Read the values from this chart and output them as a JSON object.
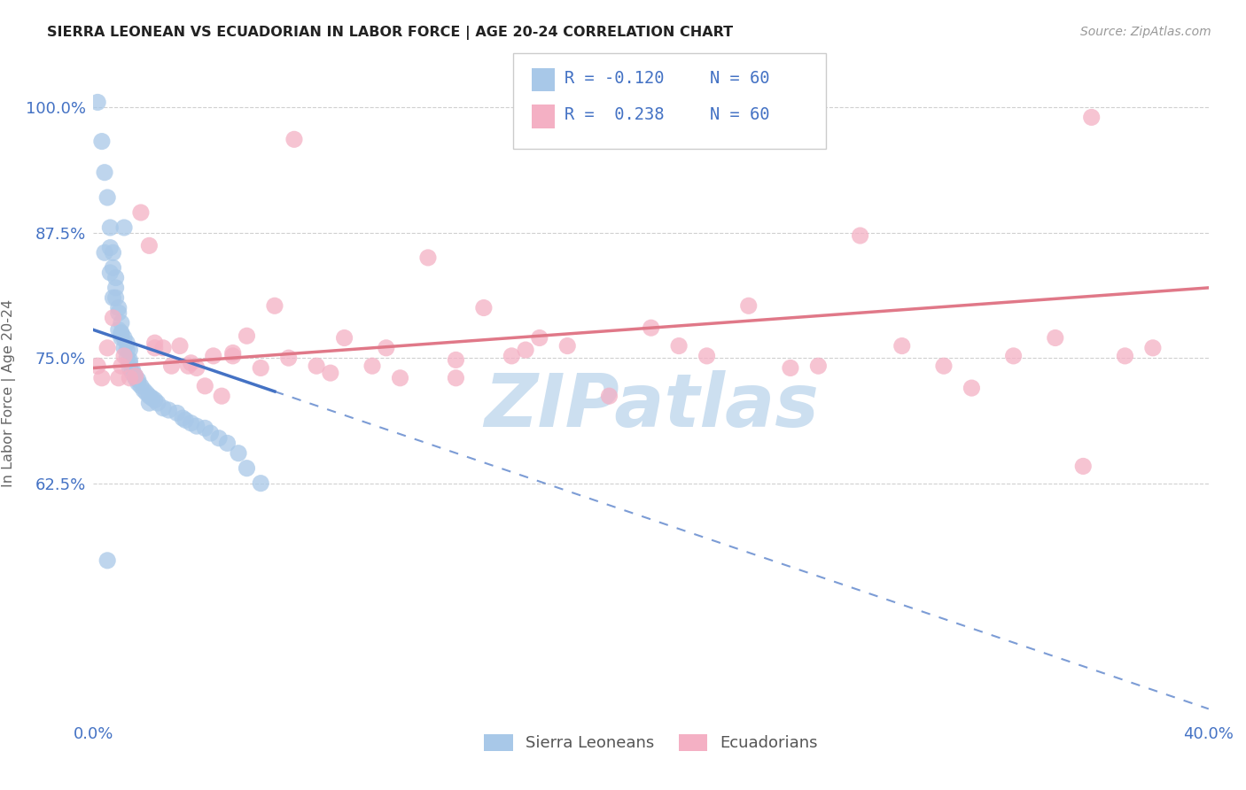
{
  "title": "SIERRA LEONEAN VS ECUADORIAN IN LABOR FORCE | AGE 20-24 CORRELATION CHART",
  "source": "Source: ZipAtlas.com",
  "ylabel": "In Labor Force | Age 20-24",
  "xlim": [
    0.0,
    0.4
  ],
  "ylim": [
    0.39,
    1.04
  ],
  "yticks": [
    0.625,
    0.75,
    0.875,
    1.0
  ],
  "ytick_labels": [
    "62.5%",
    "75.0%",
    "87.5%",
    "100.0%"
  ],
  "xticks": [
    0.0,
    0.1,
    0.2,
    0.3,
    0.4
  ],
  "xtick_labels": [
    "0.0%",
    "",
    "",
    "",
    "40.0%"
  ],
  "color_blue": "#a8c8e8",
  "color_pink": "#f4b0c4",
  "color_blue_line": "#4472c4",
  "color_pink_line": "#e07888",
  "color_blue_text": "#4472c4",
  "watermark": "ZIPatlas",
  "watermark_color": "#ccdff0",
  "grid_color": "#d0d0d0",
  "title_color": "#222222",
  "source_color": "#999999",
  "label_color": "#4472c4",
  "ylabel_color": "#666666",
  "legend_edge_color": "#cccccc",
  "sl_x": [
    0.0015,
    0.003,
    0.004,
    0.005,
    0.006,
    0.006,
    0.007,
    0.007,
    0.008,
    0.008,
    0.008,
    0.009,
    0.009,
    0.01,
    0.01,
    0.01,
    0.011,
    0.011,
    0.012,
    0.012,
    0.013,
    0.013,
    0.013,
    0.014,
    0.014,
    0.015,
    0.015,
    0.016,
    0.016,
    0.017,
    0.018,
    0.019,
    0.02,
    0.021,
    0.022,
    0.023,
    0.025,
    0.027,
    0.03,
    0.032,
    0.033,
    0.035,
    0.037,
    0.04,
    0.042,
    0.045,
    0.048,
    0.052,
    0.055,
    0.06,
    0.004,
    0.006,
    0.007,
    0.009,
    0.01,
    0.011,
    0.012,
    0.013,
    0.02,
    0.005
  ],
  "sl_y": [
    1.005,
    0.966,
    0.935,
    0.91,
    0.88,
    0.86,
    0.855,
    0.84,
    0.83,
    0.82,
    0.81,
    0.8,
    0.795,
    0.785,
    0.775,
    0.77,
    0.77,
    0.76,
    0.758,
    0.75,
    0.748,
    0.745,
    0.74,
    0.738,
    0.735,
    0.732,
    0.73,
    0.728,
    0.725,
    0.722,
    0.718,
    0.715,
    0.712,
    0.71,
    0.708,
    0.705,
    0.7,
    0.698,
    0.695,
    0.69,
    0.688,
    0.685,
    0.682,
    0.68,
    0.675,
    0.67,
    0.665,
    0.655,
    0.64,
    0.625,
    0.855,
    0.835,
    0.81,
    0.778,
    0.774,
    0.88,
    0.765,
    0.758,
    0.705,
    0.548
  ],
  "ec_x": [
    0.0015,
    0.003,
    0.005,
    0.007,
    0.009,
    0.01,
    0.011,
    0.013,
    0.015,
    0.017,
    0.02,
    0.022,
    0.025,
    0.028,
    0.031,
    0.034,
    0.037,
    0.04,
    0.043,
    0.046,
    0.05,
    0.055,
    0.06,
    0.065,
    0.072,
    0.08,
    0.09,
    0.1,
    0.11,
    0.12,
    0.13,
    0.14,
    0.15,
    0.16,
    0.17,
    0.185,
    0.2,
    0.21,
    0.22,
    0.235,
    0.25,
    0.26,
    0.275,
    0.29,
    0.305,
    0.315,
    0.33,
    0.345,
    0.355,
    0.37,
    0.022,
    0.035,
    0.05,
    0.07,
    0.085,
    0.105,
    0.13,
    0.155,
    0.38,
    0.358
  ],
  "ec_y": [
    0.742,
    0.73,
    0.76,
    0.79,
    0.73,
    0.742,
    0.752,
    0.73,
    0.732,
    0.895,
    0.862,
    0.765,
    0.76,
    0.742,
    0.762,
    0.742,
    0.74,
    0.722,
    0.752,
    0.712,
    0.752,
    0.772,
    0.74,
    0.802,
    0.968,
    0.742,
    0.77,
    0.742,
    0.73,
    0.85,
    0.73,
    0.8,
    0.752,
    0.77,
    0.762,
    0.712,
    0.78,
    0.762,
    0.752,
    0.802,
    0.74,
    0.742,
    0.872,
    0.762,
    0.742,
    0.72,
    0.752,
    0.77,
    0.642,
    0.752,
    0.76,
    0.745,
    0.755,
    0.75,
    0.735,
    0.76,
    0.748,
    0.758,
    0.76,
    0.99
  ]
}
